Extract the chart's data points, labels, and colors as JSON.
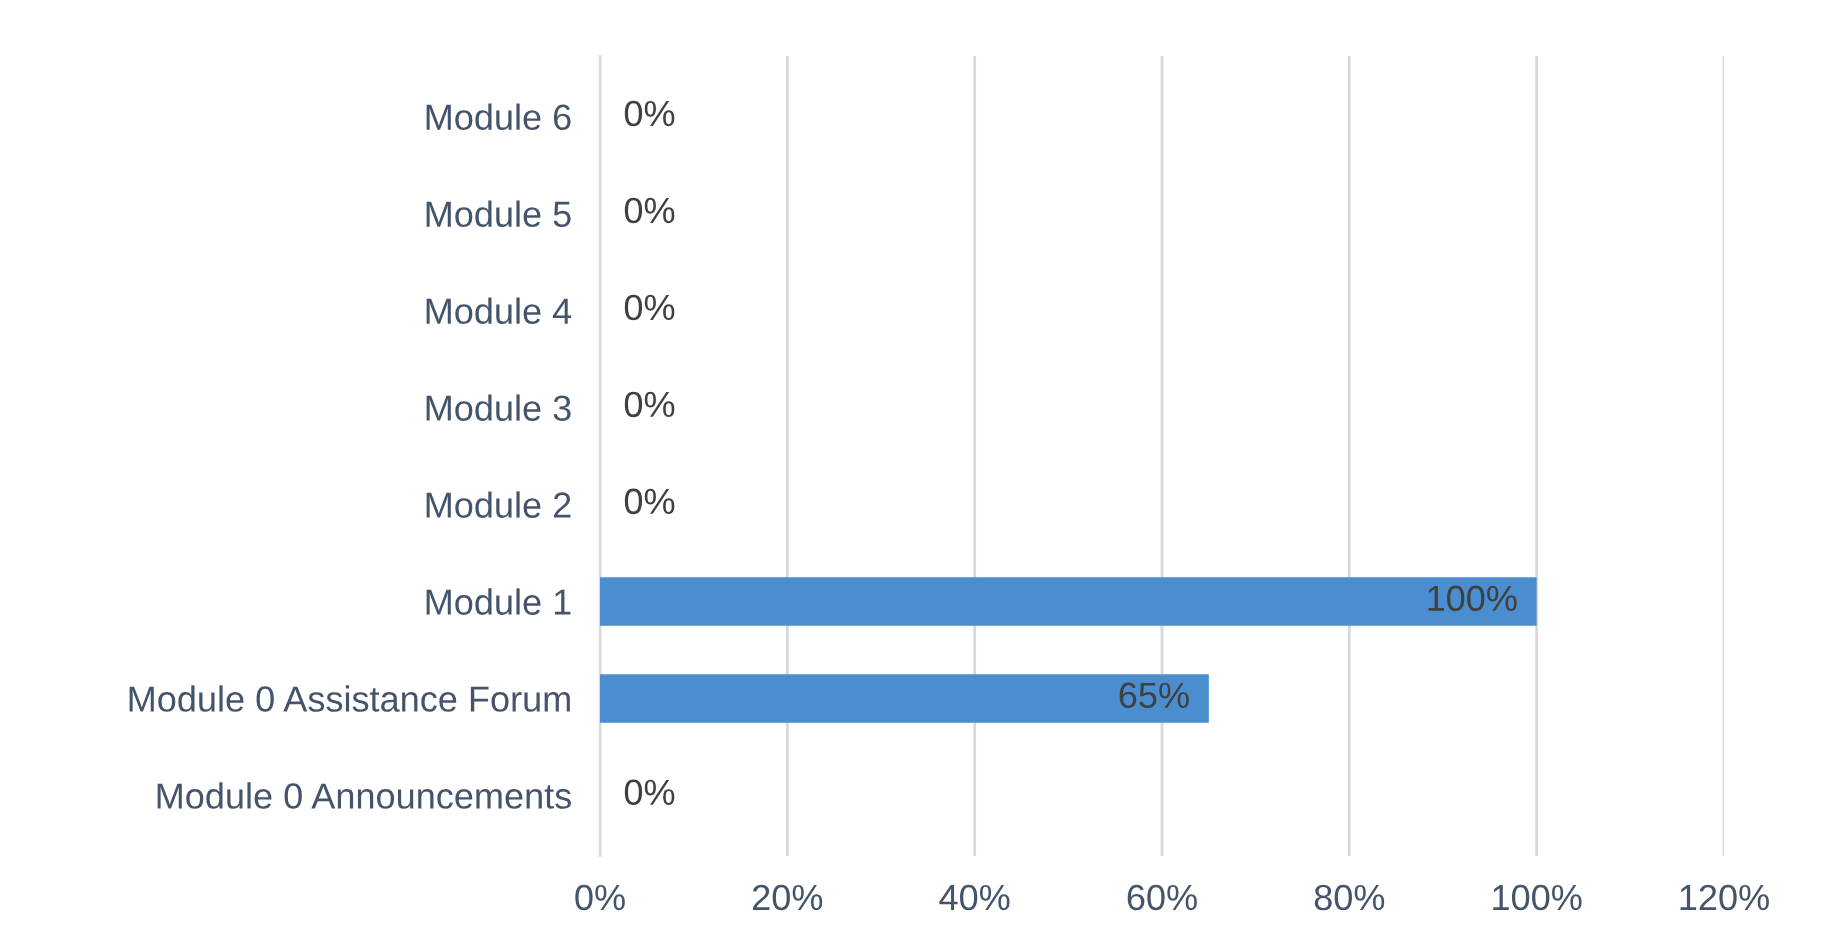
{
  "chart_data": {
    "type": "bar",
    "orientation": "horizontal",
    "categories": [
      "Module 6",
      "Module 5",
      "Module 4",
      "Module 3",
      "Module 2",
      "Module 1",
      "Module 0 Assistance Forum",
      "Module 0 Announcements"
    ],
    "values": [
      0,
      0,
      0,
      0,
      0,
      100,
      65,
      0
    ],
    "value_labels": [
      "0%",
      "0%",
      "0%",
      "0%",
      "0%",
      "100%",
      "65%",
      "0%"
    ],
    "color": "#4a8ed0",
    "xlim": [
      0,
      120
    ],
    "xticks": [
      {
        "value": 0,
        "label": "0%"
      },
      {
        "value": 20,
        "label": "20%"
      },
      {
        "value": 40,
        "label": "40%"
      },
      {
        "value": 60,
        "label": "60%"
      },
      {
        "value": 80,
        "label": "80%"
      },
      {
        "value": 100,
        "label": "100%"
      },
      {
        "value": 120,
        "label": "120%"
      }
    ],
    "grid": "x",
    "legend": false
  }
}
